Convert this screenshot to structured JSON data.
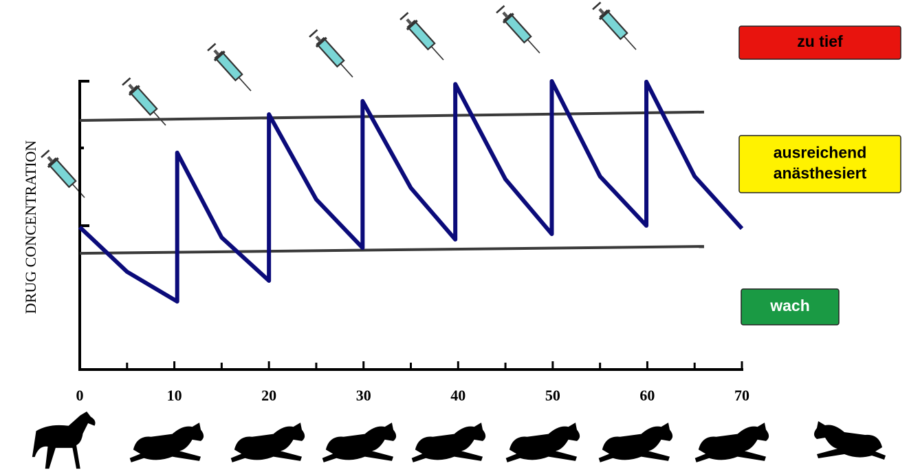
{
  "chart_data": {
    "type": "line",
    "y_label": "DRUG CONCENTRATION",
    "xlim": [
      0,
      70
    ],
    "ylim": [
      0,
      100
    ],
    "xticks": [
      0,
      10,
      20,
      30,
      40,
      50,
      60,
      70
    ],
    "minor_xticks": [
      5,
      15,
      25,
      35,
      45,
      55,
      65
    ],
    "series": [
      {
        "color": "#0b0b7a",
        "x": [
          0,
          5,
          10.3,
          10.3,
          15,
          20,
          20,
          25,
          29.9,
          29.9,
          35,
          39.7,
          39.7,
          45,
          49.9,
          49.9,
          55,
          59.9,
          59.9,
          65,
          70
        ],
        "values": [
          49.4,
          33.9,
          23.6,
          75.2,
          45.8,
          30.8,
          88.5,
          59,
          42.2,
          93.1,
          63,
          45.1,
          99,
          66,
          47,
          100,
          67,
          49.9,
          99.8,
          67,
          48.9
        ]
      },
      {
        "color": "#3a3a3a",
        "x": [
          0,
          66
        ],
        "values": [
          40.3,
          42.7
        ]
      },
      {
        "color": "#3a3a3a",
        "x": [
          0,
          66
        ],
        "values": [
          86.4,
          89.3
        ]
      }
    ],
    "zones": [
      {
        "label": "zu tief",
        "color": "#e8140e"
      },
      {
        "label": [
          "ausreichend",
          "anästhesiert"
        ],
        "color": "#fff200"
      },
      {
        "label": "wach",
        "color": "#1a9a44"
      }
    ]
  }
}
